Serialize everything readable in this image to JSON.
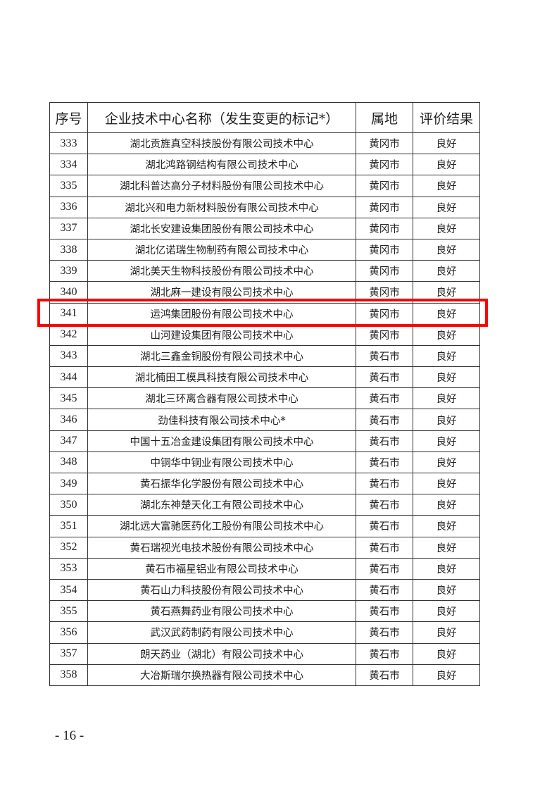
{
  "table": {
    "headers": [
      "序号",
      "企业技术中心名称（发生变更的标记*）",
      "属地",
      "评价结果"
    ],
    "rows": [
      [
        "333",
        "湖北贡旌真空科技股份有限公司技术中心",
        "黄冈市",
        "良好"
      ],
      [
        "334",
        "湖北鸿路钢结构有限公司技术中心",
        "黄冈市",
        "良好"
      ],
      [
        "335",
        "湖北科普达高分子材料股份有限公司技术中心",
        "黄冈市",
        "良好"
      ],
      [
        "336",
        "湖北兴和电力新材料股份有限公司技术中心",
        "黄冈市",
        "良好"
      ],
      [
        "337",
        "湖北长安建设集团股份有限公司技术中心",
        "黄冈市",
        "良好"
      ],
      [
        "338",
        "湖北亿诺瑞生物制药有限公司技术中心",
        "黄冈市",
        "良好"
      ],
      [
        "339",
        "湖北美天生物科技股份有限公司技术中心",
        "黄冈市",
        "良好"
      ],
      [
        "340",
        "湖北麻一建设有限公司技术中心",
        "黄冈市",
        "良好"
      ],
      [
        "341",
        "运鸿集团股份有限公司技术中心",
        "黄冈市",
        "良好"
      ],
      [
        "342",
        "山河建设集团有限公司技术中心",
        "黄冈市",
        "良好"
      ],
      [
        "343",
        "湖北三鑫金铜股份有限公司技术中心",
        "黄石市",
        "良好"
      ],
      [
        "344",
        "湖北楠田工模具科技有限公司技术中心",
        "黄石市",
        "良好"
      ],
      [
        "345",
        "湖北三环离合器有限公司技术中心",
        "黄石市",
        "良好"
      ],
      [
        "346",
        "劲佳科技有限公司技术中心*",
        "黄石市",
        "良好"
      ],
      [
        "347",
        "中国十五冶金建设集团有限公司技术中心",
        "黄石市",
        "良好"
      ],
      [
        "348",
        "中铜华中铜业有限公司技术中心",
        "黄石市",
        "良好"
      ],
      [
        "349",
        "黄石振华化学股份有限公司技术中心",
        "黄石市",
        "良好"
      ],
      [
        "350",
        "湖北东神楚天化工有限公司技术中心",
        "黄石市",
        "良好"
      ],
      [
        "351",
        "湖北远大富驰医药化工股份有限公司技术中心",
        "黄石市",
        "良好"
      ],
      [
        "352",
        "黄石瑞视光电技术股份有限公司技术中心",
        "黄石市",
        "良好"
      ],
      [
        "353",
        "黄石市福星铝业有限公司技术中心",
        "黄石市",
        "良好"
      ],
      [
        "354",
        "黄石山力科技股份有限公司技术中心",
        "黄石市",
        "良好"
      ],
      [
        "355",
        "黄石燕舞药业有限公司技术中心",
        "黄石市",
        "良好"
      ],
      [
        "356",
        "武汉武药制药有限公司技术中心",
        "黄石市",
        "良好"
      ],
      [
        "357",
        "朗天药业（湖北）有限公司技术中心",
        "黄石市",
        "良好"
      ],
      [
        "358",
        "大冶斯瑞尔换热器有限公司技术中心",
        "黄石市",
        "良好"
      ]
    ],
    "highlighted_row": "341",
    "highlight_color": "#ff0000"
  },
  "footer": {
    "page_number": "- 16 -"
  }
}
